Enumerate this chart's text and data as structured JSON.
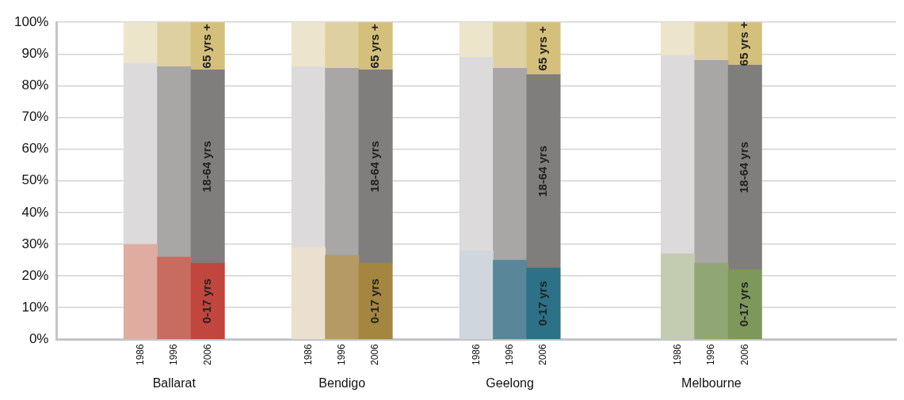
{
  "chart_data": {
    "type": "bar",
    "stacked": true,
    "grid": "y",
    "legend": false,
    "categories": [
      null,
      null,
      "1986",
      "1996",
      "2006",
      null,
      null,
      "1986",
      "1996",
      "2006",
      null,
      null,
      "1986",
      "1996",
      "2006",
      null,
      null,
      null,
      "1986",
      "1996",
      "2006",
      null,
      null,
      null,
      null
    ],
    "series": [
      {
        "name": "0-17 yrs",
        "values": [
          null,
          null,
          30,
          26,
          24,
          null,
          null,
          29,
          26.5,
          24,
          null,
          null,
          28,
          25,
          22.5,
          null,
          null,
          null,
          27,
          24,
          22,
          null,
          null,
          null,
          null
        ],
        "colors": [
          null,
          null,
          "#e0aca2",
          "#c96c60",
          "#c0463e",
          null,
          null,
          "#ebe0cf",
          "#b59a64",
          "#a48641",
          null,
          null,
          "#cfd6dd",
          "#5a8699",
          "#2c7187",
          null,
          null,
          null,
          "#c3cbb1",
          "#91a675",
          "#7d985a",
          null,
          null,
          null,
          null
        ]
      },
      {
        "name": "18-64 yrs",
        "values": [
          null,
          null,
          57,
          60,
          61,
          null,
          null,
          57,
          59,
          61,
          null,
          null,
          61,
          60.5,
          61,
          null,
          null,
          null,
          62.5,
          64,
          64.5,
          null,
          null,
          null,
          null
        ],
        "colors": [
          null,
          null,
          "#dcdadb",
          "#a8a7a5",
          "#7f7e7c",
          null,
          null,
          "#dcdadb",
          "#a8a7a5",
          "#7f7e7c",
          null,
          null,
          "#dcdadb",
          "#a8a7a5",
          "#7f7e7c",
          null,
          null,
          null,
          "#dcdadb",
          "#a8a7a5",
          "#7f7e7c",
          null,
          null,
          null,
          null
        ]
      },
      {
        "name": "65 yrs +",
        "values": [
          null,
          null,
          13,
          14,
          15,
          null,
          null,
          14,
          14.5,
          15,
          null,
          null,
          11,
          14.5,
          16.5,
          null,
          null,
          null,
          10.5,
          12,
          13.5,
          null,
          null,
          null,
          null
        ],
        "colors": [
          null,
          null,
          "#ede4cc",
          "#ded0a0",
          "#d4bf7c",
          null,
          null,
          "#ede4cc",
          "#ded0a0",
          "#d4bf7c",
          null,
          null,
          "#ede4cc",
          "#ded0a0",
          "#d4bf7c",
          null,
          null,
          null,
          "#ede4cc",
          "#ded0a0",
          "#d4bf7c",
          null,
          null,
          null,
          null
        ]
      }
    ],
    "ylim": [
      0,
      100
    ],
    "yticks": [
      {
        "value": 0,
        "label": "0%"
      },
      {
        "value": 10,
        "label": "10%"
      },
      {
        "value": 20,
        "label": "20%"
      },
      {
        "value": 30,
        "label": "30%"
      },
      {
        "value": 40,
        "label": "40%"
      },
      {
        "value": 50,
        "label": "50%"
      },
      {
        "value": 60,
        "label": "60%"
      },
      {
        "value": 70,
        "label": "70%"
      },
      {
        "value": 80,
        "label": "80%"
      },
      {
        "value": 90,
        "label": "90%"
      },
      {
        "value": 100,
        "label": "100%"
      }
    ],
    "annotations": [
      "Ballarat",
      "Bendigo",
      "Geelong",
      "Melbourne"
    ]
  }
}
